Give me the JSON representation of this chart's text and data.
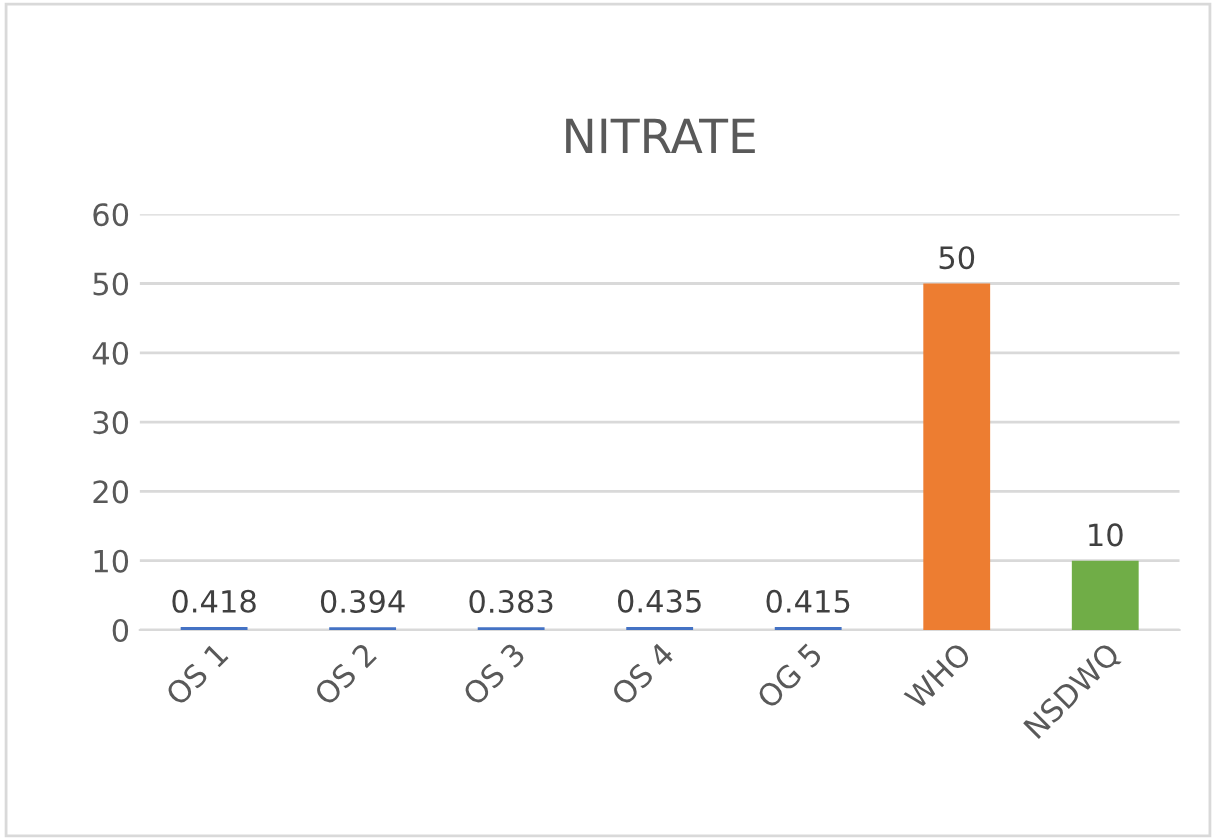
{
  "chart_data": {
    "type": "bar",
    "title": "NITRATE",
    "categories": [
      "OS 1",
      "OS 2",
      "OS 3",
      "OS 4",
      "OG 5",
      "WHO",
      "NSDWQ"
    ],
    "values": [
      0.418,
      0.394,
      0.383,
      0.435,
      0.415,
      50,
      10
    ],
    "colors": [
      "#4472c4",
      "#4472c4",
      "#4472c4",
      "#4472c4",
      "#4472c4",
      "#ed7d31",
      "#70ad47"
    ],
    "ylim": [
      0,
      60
    ],
    "yticks": [
      0,
      10,
      20,
      30,
      40,
      50,
      60
    ],
    "grid": "y",
    "data_labels": true
  }
}
